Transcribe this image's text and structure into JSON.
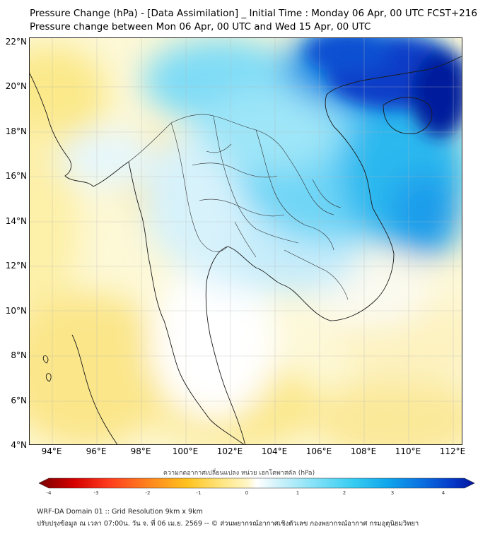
{
  "header": {
    "title_line1": "Pressure Change (hPa) - [Data Assimilation] _ Initial Time : Monday 06 Apr, 00 UTC FCST+216",
    "title_line2": "Pressure change between Mon 06 Apr, 00 UTC and Wed 15 Apr, 00 UTC"
  },
  "map": {
    "lat_ticks": [
      "22°N",
      "20°N",
      "18°N",
      "16°N",
      "14°N",
      "12°N",
      "10°N",
      "8°N",
      "6°N",
      "4°N"
    ],
    "lon_ticks": [
      "94°E",
      "96°E",
      "98°E",
      "100°E",
      "102°E",
      "104°E",
      "106°E",
      "108°E",
      "110°E",
      "112°E"
    ]
  },
  "colorbar": {
    "label": "ความกดอากาศเปลี่ยนแปลง หน่วย เฮกโตพาสคัล (hPa)",
    "ticks": [
      "-4",
      "-3",
      "-2",
      "-1",
      "0",
      "1",
      "2",
      "3",
      "4"
    ],
    "colors": [
      "#7a0000",
      "#d40000",
      "#ff3b1e",
      "#ff8a1e",
      "#ffc21e",
      "#ffe680",
      "#fff6c8",
      "#ffffff",
      "#d8f4fb",
      "#8fe4f8",
      "#37cdf2",
      "#0fa6ec",
      "#0a6fe0",
      "#0538c8",
      "#02149a"
    ]
  },
  "footer": {
    "line1": "WRF-DA Domain 01 :: Grid Resolution 9km x 9km",
    "line2": "ปรับปรุงข้อมูล ณ เวลา 07:00น. วัน จ. ที่ 06 เม.ย. 2569 -- © ส่วนพยากรณ์อากาศเชิงตัวเลข กองพยากรณ์อากาศ กรมอุตุนิยมวิทยา"
  }
}
